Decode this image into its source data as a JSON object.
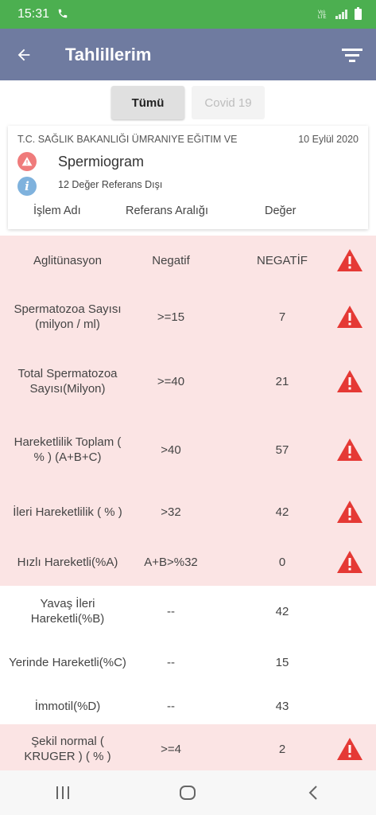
{
  "status_bar": {
    "time": "15:31"
  },
  "app_bar": {
    "title": "Tahlillerim"
  },
  "tabs": [
    {
      "label": "Tümü",
      "selected": true
    },
    {
      "label": "Covid 19",
      "selected": false
    }
  ],
  "card": {
    "hospital": "T.C. SAĞLIK BAKANLIĞI ÜMRANIYE EĞITIM VE",
    "date": "10 Eylül 2020",
    "test_name": "Spermiogram",
    "out_of_range_text": "12 Değer Referans Dışı",
    "columns": {
      "name": "İşlem Adı",
      "reference": "Referans Aralığı",
      "value": "Değer"
    }
  },
  "results": [
    {
      "name": "Aglitünasyon",
      "reference": "Negatif",
      "value": "NEGATİF",
      "abnormal": true
    },
    {
      "name": "Spermatozoa Sayısı (milyon / ml)",
      "reference": ">=15",
      "value": "7",
      "abnormal": true
    },
    {
      "name": "Total Spermatozoa Sayısı(Milyon)",
      "reference": ">=40",
      "value": "21",
      "abnormal": true
    },
    {
      "name": "Hareketlilik Toplam ( % ) (A+B+C)",
      "reference": ">40",
      "value": "57",
      "abnormal": true
    },
    {
      "name": "İleri Hareketlilik ( % )",
      "reference": ">32",
      "value": "42",
      "abnormal": true
    },
    {
      "name": "Hızlı Hareketli(%A)",
      "reference": "A+B>%32",
      "value": "0",
      "abnormal": true
    },
    {
      "name": "Yavaş İleri Hareketli(%B)",
      "reference": "--",
      "value": "42",
      "abnormal": false
    },
    {
      "name": "Yerinde Hareketli(%C)",
      "reference": "--",
      "value": "15",
      "abnormal": false
    },
    {
      "name": "İmmotil(%D)",
      "reference": "--",
      "value": "43",
      "abnormal": false
    },
    {
      "name": "Şekil normal ( KRUGER ) ( % )",
      "reference": ">=4",
      "value": "2",
      "abnormal": true
    }
  ],
  "colors": {
    "status_bar": "#4caf50",
    "app_bar": "#6f7ba0",
    "abnormal_row": "#fbe4e4",
    "warning": "#e53935",
    "info": "#7fb2dd"
  },
  "icons": {
    "back": "arrow-left-icon",
    "filter": "filter-icon",
    "warning": "warning-triangle-icon",
    "info": "info-icon"
  }
}
